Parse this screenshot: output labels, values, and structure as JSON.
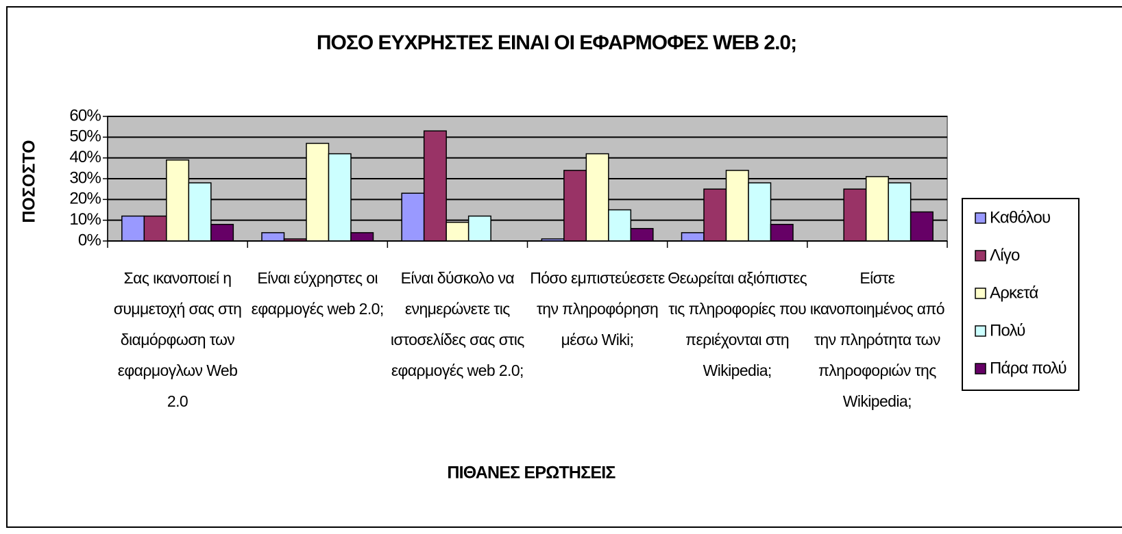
{
  "chart_data": {
    "type": "bar",
    "title": "ΠΟΣΟ ΕΥΧΡΗΣΤΕΣ ΕΙΝΑΙ ΟΙ ΕΦΑΡΜΟΦΕΣ WEB 2.0;",
    "xlabel": "ΠΙΘΑΝΕΣ ΕΡΩΤΗΣΕΙΣ",
    "ylabel": "ΠΟΣΟΣΤΟ",
    "categories": [
      "Σας ικανοποιεί η συμμετοχή σας στη διαμόρφωση των εφαρμογλων Web 2.0",
      "Είναι εύχρηστες οι εφαρμογές web 2.0;",
      "Είναι δύσκολο να ενημερώνετε τις ιστοσελίδες σας στις εφαρμογές web 2.0;",
      "Πόσο εμπιστεύεσετε την πληροφόρηση μέσω Wiki;",
      "Θεωρείται αξιόπιστες τις πληροφορίες που περιέχονται στη Wikipedia;",
      "Είστε ικανοποιημένος από την πληρότητα των πληροφοριών της Wikipedia;"
    ],
    "series": [
      {
        "name": "Καθόλου",
        "color": "#9999ff",
        "values": [
          12,
          4,
          23,
          1,
          4,
          0
        ]
      },
      {
        "name": "Λίγο",
        "color": "#993366",
        "values": [
          12,
          1,
          53,
          34,
          25,
          25
        ]
      },
      {
        "name": "Αρκετά",
        "color": "#ffffcc",
        "values": [
          39,
          47,
          9,
          42,
          34,
          31
        ]
      },
      {
        "name": "Πολύ",
        "color": "#ccffff",
        "values": [
          28,
          42,
          12,
          15,
          28,
          28
        ]
      },
      {
        "name": "Πάρα πολύ",
        "color": "#660066",
        "values": [
          8,
          4,
          0,
          6,
          8,
          14
        ]
      }
    ],
    "ylim": [
      0,
      60
    ],
    "yticks": [
      {
        "value": 0,
        "label": "0%"
      },
      {
        "value": 10,
        "label": "10%"
      },
      {
        "value": 20,
        "label": "20%"
      },
      {
        "value": 30,
        "label": "30%"
      },
      {
        "value": 40,
        "label": "40%"
      },
      {
        "value": 50,
        "label": "50%"
      },
      {
        "value": 60,
        "label": "60%"
      }
    ],
    "grid": true,
    "legend": "right"
  }
}
